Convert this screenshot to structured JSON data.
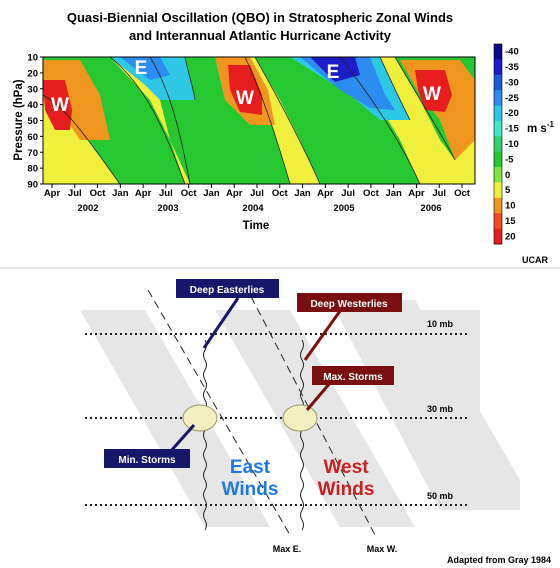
{
  "chart_data": [
    {
      "type": "heatmap",
      "title": "Quasi-Biennial Oscillation (QBO) in Stratospheric Zonal Winds",
      "subtitle": "and Interannual Atlantic Hurricane Activity",
      "xlabel": "Time",
      "ylabel": "Pressure (hPa)",
      "y_ticks": [
        "10",
        "20",
        "30",
        "40",
        "50",
        "60",
        "70",
        "80",
        "90"
      ],
      "month_ticks": [
        "Apr",
        "Jul",
        "Oct",
        "Jan",
        "Apr",
        "Jul",
        "Oct",
        "Jan",
        "Apr",
        "Jul",
        "Oct",
        "Jan",
        "Apr",
        "Jul",
        "Oct",
        "Jan",
        "Apr",
        "Jul",
        "Oct"
      ],
      "year_ticks": [
        "2002",
        "2003",
        "2004",
        "2005",
        "2006"
      ],
      "colorbar": {
        "label": "m s",
        "label_exp": "-1",
        "ticks": [
          "-40",
          "-35",
          "-30",
          "-25",
          "-20",
          "-15",
          "-10",
          "-5",
          "0",
          "5",
          "10",
          "15",
          "20"
        ],
        "colors": [
          "#0a0a8c",
          "#1c1cc8",
          "#1e5ad2",
          "#2d8cf0",
          "#2cc8e6",
          "#40e6c8",
          "#32d26e",
          "#26c832",
          "#7ee63c",
          "#f0f03c",
          "#f0961e",
          "#f04b1e",
          "#e61e1e"
        ]
      },
      "regions": [
        {
          "label": "W",
          "kind": "westerly",
          "time": "2002 Apr",
          "pressure": 35
        },
        {
          "label": "E",
          "kind": "easterly",
          "time": "2003 Apr",
          "pressure": 15
        },
        {
          "label": "W",
          "kind": "westerly",
          "time": "2004 May",
          "pressure": 30
        },
        {
          "label": "E",
          "kind": "easterly",
          "time": "2005 Apr",
          "pressure": 15
        },
        {
          "label": "W",
          "kind": "westerly",
          "time": "2006 Jul",
          "pressure": 30
        }
      ],
      "source": "UCAR"
    },
    {
      "type": "diagram",
      "levels": [
        "10 mb",
        "30 mb",
        "50 mb"
      ],
      "labels": {
        "deep_easterlies": "Deep Easterlies",
        "deep_westerlies": "Deep Westerlies",
        "max_storms": "Max. Storms",
        "min_storms": "Min. Storms",
        "east_winds_1": "East",
        "east_winds_2": "Winds",
        "west_winds_1": "West",
        "west_winds_2": "Winds",
        "max_e": "Max E.",
        "max_w": "Max W."
      },
      "colors": {
        "east_text": "#1f78e0",
        "west_text": "#cc1f1f",
        "easterlies_box": "#16166a",
        "westerlies_box": "#7a0f0f",
        "band": "#e6e6e6",
        "ellipse": "#f3efc0"
      },
      "source": "Adapted from Gray 1984"
    }
  ]
}
